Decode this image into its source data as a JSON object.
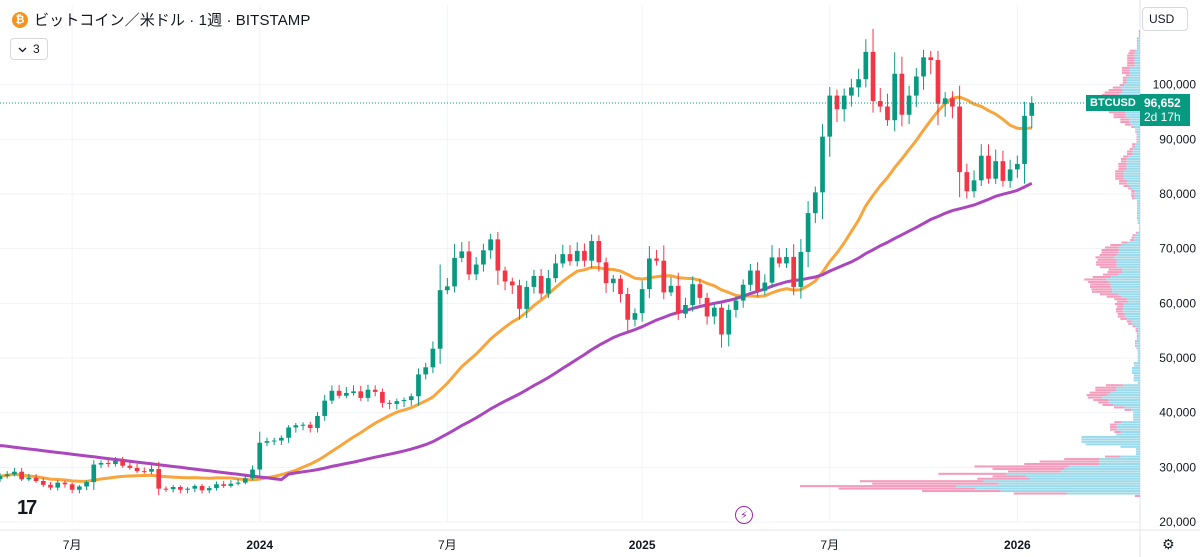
{
  "header": {
    "coin_icon_glyph": "₿",
    "title": "ビットコイン／米ドル · 1週 · BITSTAMP",
    "indicator_count": "3",
    "currency": "USD"
  },
  "price_tag": {
    "symbol": "BTCUSD",
    "price": "96,652",
    "countdown": "2d 17h"
  },
  "footer": {
    "logo_text": "17"
  },
  "icons": {
    "coin": "bitcoin-icon",
    "collapse": "chevron-down-icon",
    "bolt": "lightning-icon",
    "settings": "gear-icon"
  },
  "chart_data": {
    "type": "candlestick",
    "ylim": [
      20000,
      110000
    ],
    "y_ticks": [
      20000,
      30000,
      40000,
      50000,
      60000,
      70000,
      80000,
      90000,
      100000
    ],
    "y_tick_labels": [
      "20,000",
      "30,000",
      "40,000",
      "50,000",
      "60,000",
      "70,000",
      "80,000",
      "90,000",
      "100,000"
    ],
    "x_range": [
      "2023-04-24",
      "2026-05-04"
    ],
    "x_ticks": [
      {
        "date": "2023-07-03",
        "label": "7月"
      },
      {
        "date": "2024-01-01",
        "label": "2024"
      },
      {
        "date": "2024-07-01",
        "label": "7月"
      },
      {
        "date": "2025-01-06",
        "label": "2025"
      },
      {
        "date": "2025-07-07",
        "label": "7月"
      },
      {
        "date": "2026-01-05",
        "label": "2026"
      }
    ],
    "first_week": "2023-04-24",
    "weekly_closes": [
      28400,
      28700,
      29200,
      27800,
      28100,
      27500,
      26800,
      26300,
      27200,
      26900,
      25900,
      26500,
      27300,
      30500,
      30800,
      30600,
      31200,
      30300,
      29900,
      29300,
      29200,
      29700,
      26100,
      26000,
      26400,
      25900,
      26100,
      26600,
      25800,
      26200,
      26900,
      26600,
      27000,
      27200,
      28000,
      29600,
      34500,
      34800,
      34900,
      35400,
      37300,
      37700,
      37800,
      37200,
      39400,
      42200,
      44000,
      43100,
      43600,
      43900,
      42700,
      44200,
      43800,
      41800,
      41600,
      42100,
      42300,
      43000,
      47000,
      48300,
      51700,
      62400,
      63100,
      68300,
      69500,
      65300,
      67100,
      69700,
      71700,
      66000,
      64000,
      63300,
      59000,
      63000,
      65000,
      61800,
      64600,
      67300,
      69000,
      67700,
      69600,
      67800,
      71400,
      67500,
      63700,
      64500,
      61700,
      57000,
      58200,
      62600,
      68200,
      67800,
      62000,
      63200,
      58100,
      59700,
      63500,
      61000,
      57600,
      59200,
      54300,
      58800,
      60500,
      63400,
      66000,
      62300,
      63800,
      68400,
      67300,
      68500,
      63000,
      69400,
      76500,
      80300,
      90500,
      98000,
      95500,
      98000,
      99500,
      101000,
      106000,
      97000,
      96000,
      93500,
      102000,
      94500,
      98000,
      101500,
      105000,
      104500,
      96500,
      97500,
      96000,
      84000,
      80500,
      82500,
      87000,
      82800,
      86000,
      82400,
      84500,
      85500,
      94300,
      96652
    ],
    "series": [
      {
        "name": "",
        "color": "#f7a53c",
        "period": 20
      },
      {
        "name": "",
        "color": "#ab47bc",
        "period": 50
      }
    ],
    "up_color": "#089981",
    "down_color": "#f23645",
    "volume_profile": {
      "up_color": "#8ad4e6",
      "down_color": "#f28bb0"
    }
  }
}
